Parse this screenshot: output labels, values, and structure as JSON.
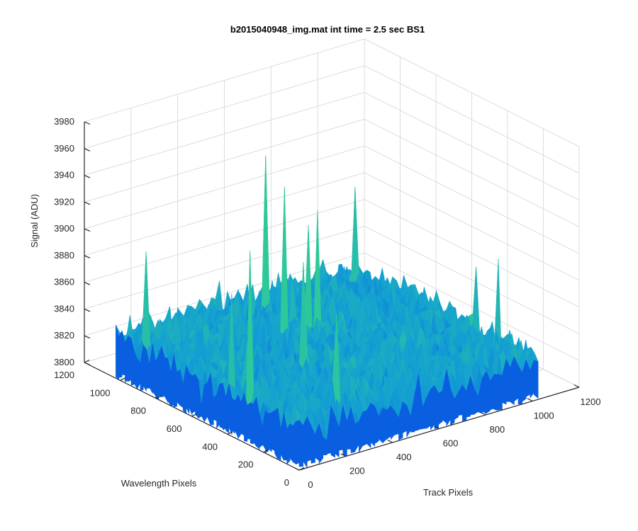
{
  "chart_data": {
    "type": "surface",
    "title": "b2015040948_img.mat int time = 2.5 sec   BS1",
    "xlabel": "Track Pixels",
    "ylabel": "Wavelength Pixels",
    "zlabel": "Signal (ADU)",
    "xlim": [
      0,
      1200
    ],
    "ylim": [
      0,
      1200
    ],
    "zlim": [
      3800,
      3980
    ],
    "x_ticks": [
      "0",
      "200",
      "400",
      "600",
      "800",
      "1000",
      "1200"
    ],
    "y_ticks": [
      "0",
      "200",
      "400",
      "600",
      "800",
      "1000",
      "1200"
    ],
    "z_ticks": [
      "3800",
      "3820",
      "3840",
      "3860",
      "3880",
      "3900",
      "3920",
      "3940",
      "3960",
      "3980"
    ],
    "surface": {
      "x_range": [
        0,
        1024
      ],
      "y_range": [
        0,
        1024
      ],
      "mean_signal": 3830,
      "typical_min": 3810,
      "typical_max": 3850,
      "peak_max": 3945
    },
    "grid": true,
    "colormap": "parula",
    "colors": {
      "low": "#0a5fe0",
      "mid": "#14a0d2",
      "high": "#2fc89a"
    }
  }
}
